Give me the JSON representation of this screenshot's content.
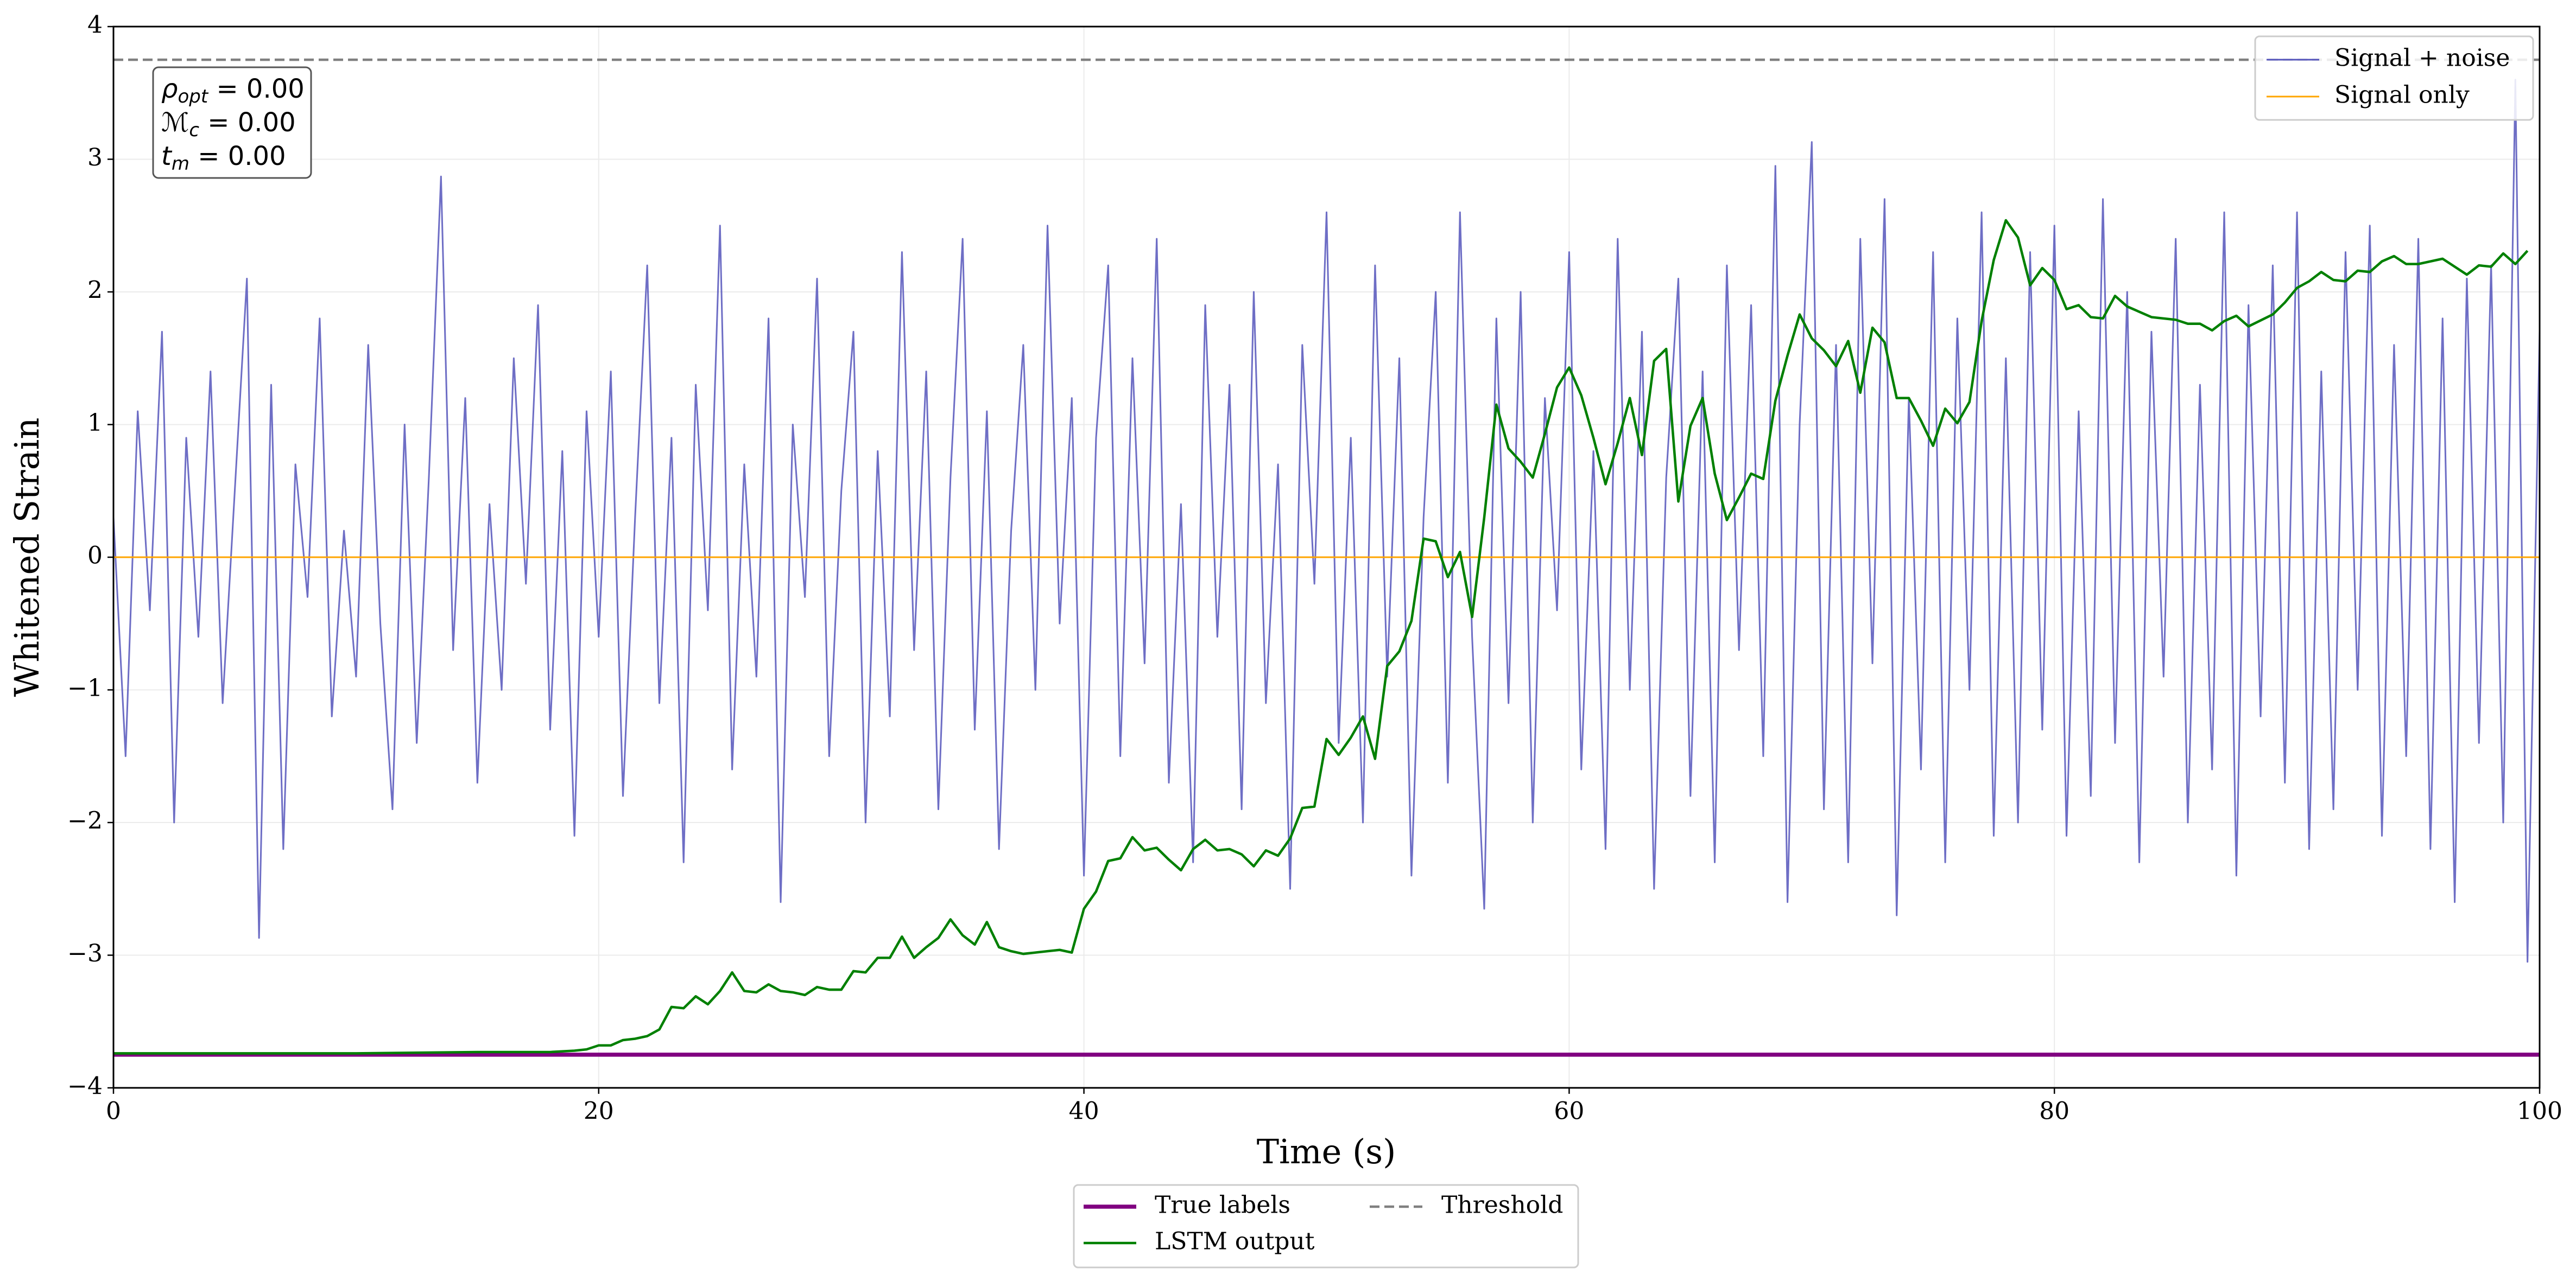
{
  "chart_data": {
    "type": "line",
    "xlabel": "Time (s)",
    "ylabel": "Whitened Strain",
    "xlim": [
      0,
      100
    ],
    "ylim": [
      -4,
      4
    ],
    "xticks": [
      0,
      20,
      40,
      60,
      80,
      100
    ],
    "yticks": [
      {
        "value": -4,
        "label": "−4"
      },
      {
        "value": -3,
        "label": "−3"
      },
      {
        "value": -2,
        "label": "−2"
      },
      {
        "value": -1,
        "label": "−1"
      },
      0,
      1,
      2,
      3,
      4
    ],
    "grid": true,
    "annotations": [
      {
        "symbol": "ρ",
        "subscript": "opt",
        "text": " = 0.00"
      },
      {
        "symbol": "ℳ",
        "subscript": "c",
        "text": " = 0.00"
      },
      {
        "symbol": "t",
        "subscript": "m",
        "text": " = 0.00"
      }
    ],
    "series": [
      {
        "name": "Signal + noise",
        "color": "#5555bb",
        "linewidth": 1,
        "linestyle": "solid",
        "legend": "upper right",
        "x": [
          0,
          0.5,
          1,
          1.5,
          2,
          2.5,
          3,
          3.5,
          4,
          4.5,
          5,
          5.5,
          6,
          6.5,
          7,
          7.5,
          8,
          8.5,
          9,
          9.5,
          10,
          10.5,
          11,
          11.5,
          12,
          12.5,
          13,
          13.5,
          14,
          14.5,
          15,
          15.5,
          16,
          16.5,
          17,
          17.5,
          18,
          18.5,
          19,
          19.5,
          20,
          20.5,
          21,
          21.5,
          22,
          22.5,
          23,
          23.5,
          24,
          24.5,
          25,
          25.5,
          26,
          26.5,
          27,
          27.5,
          28,
          28.5,
          29,
          29.5,
          30,
          30.5,
          31,
          31.5,
          32,
          32.5,
          33,
          33.5,
          34,
          34.5,
          35,
          35.5,
          36,
          36.5,
          37,
          37.5,
          38,
          38.5,
          39,
          39.5,
          40,
          40.5,
          41,
          41.5,
          42,
          42.5,
          43,
          43.5,
          44,
          44.5,
          45,
          45.5,
          46,
          46.5,
          47,
          47.5,
          48,
          48.5,
          49,
          49.5,
          50,
          50.5,
          51,
          51.5,
          52,
          52.5,
          53,
          53.5,
          54,
          54.5,
          55,
          55.5,
          56,
          56.5,
          57,
          57.5,
          58,
          58.5,
          59,
          59.5,
          60,
          60.5,
          61,
          61.5,
          62,
          62.5,
          63,
          63.5,
          64,
          64.5,
          65,
          65.5,
          66,
          66.5,
          67,
          67.5,
          68,
          68.5,
          69,
          69.5,
          70,
          70.5,
          71,
          71.5,
          72,
          72.5,
          73,
          73.5,
          74,
          74.5,
          75,
          75.5,
          76,
          76.5,
          77,
          77.5,
          78,
          78.5,
          79,
          79.5,
          80,
          80.5,
          81,
          81.5,
          82,
          82.5,
          83,
          83.5,
          84,
          84.5,
          85,
          85.5,
          86,
          86.5,
          87,
          87.5,
          88,
          88.5,
          89,
          89.5,
          90,
          90.5,
          91,
          91.5,
          92,
          92.5,
          93,
          93.5,
          94,
          94.5,
          95,
          95.5,
          96,
          96.5,
          97,
          97.5,
          98,
          98.5,
          99,
          99.5,
          100
        ],
        "values": [
          0.3,
          -1.5,
          1.1,
          -0.4,
          1.7,
          -2.0,
          0.9,
          -0.6,
          1.4,
          -1.1,
          0.5,
          2.1,
          -2.87,
          1.3,
          -2.2,
          0.7,
          -0.3,
          1.8,
          -1.2,
          0.2,
          -0.9,
          1.6,
          -0.5,
          -1.9,
          1.0,
          -1.4,
          0.6,
          2.87,
          -0.7,
          1.2,
          -1.7,
          0.4,
          -1.0,
          1.5,
          -0.2,
          1.9,
          -1.3,
          0.8,
          -2.1,
          1.1,
          -0.6,
          1.4,
          -1.8,
          0.3,
          2.2,
          -1.1,
          0.9,
          -2.3,
          1.3,
          -0.4,
          2.5,
          -1.6,
          0.7,
          -0.9,
          1.8,
          -2.6,
          1.0,
          -0.3,
          2.1,
          -1.5,
          0.5,
          1.7,
          -2.0,
          0.8,
          -1.2,
          2.3,
          -0.7,
          1.4,
          -1.9,
          0.6,
          2.4,
          -1.3,
          1.1,
          -2.2,
          0.2,
          1.6,
          -1.0,
          2.5,
          -0.5,
          1.2,
          -2.4,
          0.9,
          2.2,
          -1.5,
          1.5,
          -0.8,
          2.4,
          -1.7,
          0.4,
          -2.3,
          1.9,
          -0.6,
          1.3,
          -1.9,
          2.0,
          -1.1,
          0.7,
          -2.5,
          1.6,
          -0.2,
          2.6,
          -1.4,
          0.9,
          -2.0,
          2.2,
          -0.9,
          1.5,
          -2.4,
          0.3,
          2.0,
          -1.7,
          2.6,
          -0.6,
          -2.65,
          1.8,
          -1.1,
          2.0,
          -2.0,
          1.2,
          -0.4,
          2.3,
          -1.6,
          0.8,
          -2.2,
          2.4,
          -1.0,
          1.7,
          -2.5,
          0.6,
          2.1,
          -1.8,
          1.4,
          -2.3,
          2.2,
          -0.7,
          1.9,
          -1.5,
          2.95,
          -2.6,
          1.0,
          3.13,
          -1.9,
          1.6,
          -2.3,
          2.4,
          -0.8,
          2.7,
          -2.7,
          1.2,
          -1.6,
          2.3,
          -2.3,
          1.8,
          -1.0,
          2.6,
          -2.1,
          1.5,
          -2.0,
          2.3,
          -1.3,
          2.5,
          -2.1,
          1.1,
          -1.8,
          2.7,
          -1.4,
          2.0,
          -2.3,
          1.7,
          -0.9,
          2.4,
          -2.0,
          1.3,
          -1.6,
          2.6,
          -2.4,
          1.9,
          -1.2,
          2.2,
          -1.7,
          2.6,
          -2.2,
          1.4,
          -1.9,
          2.3,
          -1.0,
          2.5,
          -2.1,
          1.6,
          -1.5,
          2.4,
          -2.2,
          1.8,
          -2.6,
          2.1,
          -1.4,
          2.2,
          -2.0,
          3.6,
          -3.05,
          1.7
        ]
      },
      {
        "name": "Signal only",
        "color": "#ffa500",
        "linewidth": 1,
        "linestyle": "solid",
        "legend": "upper right",
        "x": [
          0,
          100
        ],
        "values": [
          0,
          0
        ]
      },
      {
        "name": "True labels",
        "color": "#800080",
        "linewidth": 2.5,
        "linestyle": "solid",
        "legend": "lower center",
        "x": [
          0,
          100
        ],
        "values": [
          -3.75,
          -3.75
        ]
      },
      {
        "name": "LSTM output",
        "color": "#008000",
        "linewidth": 1.5,
        "linestyle": "solid",
        "legend": "lower center",
        "x": [
          0,
          10,
          15,
          18,
          19,
          19.5,
          20,
          20.5,
          21,
          21.5,
          22,
          22.5,
          23,
          23.5,
          24,
          24.5,
          25,
          25.5,
          26,
          26.5,
          27,
          27.5,
          28,
          28.5,
          29,
          29.5,
          30,
          30.5,
          31,
          31.5,
          32,
          32.5,
          33,
          33.5,
          34,
          34.5,
          35,
          35.5,
          36,
          36.5,
          37,
          37.5,
          38,
          38.5,
          39,
          39.5,
          40,
          40.5,
          41,
          41.5,
          42,
          42.5,
          43,
          43.5,
          44,
          44.5,
          45,
          45.5,
          46,
          46.5,
          47,
          47.5,
          48,
          48.5,
          49,
          49.5,
          50,
          50.5,
          51,
          51.5,
          52,
          52.5,
          53,
          53.5,
          54,
          54.5,
          55,
          55.5,
          56,
          56.5,
          57,
          57.5,
          58,
          58.5,
          59,
          59.5,
          60,
          60.5,
          61,
          61.5,
          62,
          62.5,
          63,
          63.5,
          64,
          64.5,
          65,
          65.5,
          66,
          66.5,
          67,
          67.5,
          68,
          68.5,
          69,
          69.5,
          70,
          70.5,
          71,
          71.5,
          72,
          72.5,
          73,
          73.5,
          74,
          74.5,
          75,
          75.5,
          76,
          76.5,
          77,
          77.5,
          78,
          78.5,
          79,
          79.5,
          80,
          80.5,
          81,
          81.5,
          82,
          82.5,
          83,
          84,
          85,
          85.5,
          86,
          86.5,
          87,
          87.5,
          88,
          89,
          89.5,
          90,
          90.5,
          91,
          91.5,
          92,
          92.5,
          93,
          93.5,
          94,
          94.5,
          95,
          96,
          97,
          97.5,
          98,
          98.5,
          99,
          99.5
        ],
        "values": [
          -3.74,
          -3.74,
          -3.73,
          -3.73,
          -3.72,
          -3.71,
          -3.68,
          -3.68,
          -3.64,
          -3.63,
          -3.61,
          -3.56,
          -3.39,
          -3.4,
          -3.31,
          -3.37,
          -3.27,
          -3.13,
          -3.27,
          -3.28,
          -3.22,
          -3.27,
          -3.28,
          -3.3,
          -3.24,
          -3.26,
          -3.26,
          -3.12,
          -3.13,
          -3.02,
          -3.02,
          -2.86,
          -3.02,
          -2.94,
          -2.87,
          -2.73,
          -2.85,
          -2.92,
          -2.75,
          -2.94,
          -2.97,
          -2.99,
          -2.98,
          -2.97,
          -2.96,
          -2.98,
          -2.65,
          -2.52,
          -2.29,
          -2.27,
          -2.11,
          -2.21,
          -2.19,
          -2.28,
          -2.36,
          -2.2,
          -2.13,
          -2.21,
          -2.2,
          -2.24,
          -2.33,
          -2.21,
          -2.25,
          -2.12,
          -1.89,
          -1.88,
          -1.37,
          -1.49,
          -1.36,
          -1.2,
          -1.52,
          -0.82,
          -0.71,
          -0.48,
          0.14,
          0.12,
          -0.15,
          0.04,
          -0.45,
          0.3,
          1.15,
          0.82,
          0.72,
          0.6,
          0.93,
          1.28,
          1.43,
          1.22,
          0.9,
          0.55,
          0.86,
          1.2,
          0.77,
          1.48,
          1.57,
          0.42,
          0.99,
          1.2,
          0.63,
          0.28,
          0.45,
          0.63,
          0.59,
          1.18,
          1.52,
          1.83,
          1.65,
          1.56,
          1.44,
          1.63,
          1.24,
          1.73,
          1.62,
          1.2,
          1.2,
          1.03,
          0.84,
          1.12,
          1.01,
          1.17,
          1.78,
          2.24,
          2.54,
          2.41,
          2.05,
          2.18,
          2.09,
          1.87,
          1.9,
          1.81,
          1.8,
          1.97,
          1.89,
          1.81,
          1.79,
          1.76,
          1.76,
          1.71,
          1.78,
          1.82,
          1.74,
          1.83,
          1.92,
          2.03,
          2.08,
          2.15,
          2.09,
          2.08,
          2.16,
          2.15,
          2.23,
          2.27,
          2.21,
          2.21,
          2.25,
          2.13,
          2.2,
          2.19,
          2.29,
          2.21,
          2.31
        ]
      },
      {
        "name": "Threshold",
        "color": "#808080",
        "linewidth": 1.5,
        "linestyle": "dashed",
        "legend": "lower center",
        "x": [
          0,
          100
        ],
        "values": [
          3.75,
          3.75
        ]
      }
    ]
  }
}
